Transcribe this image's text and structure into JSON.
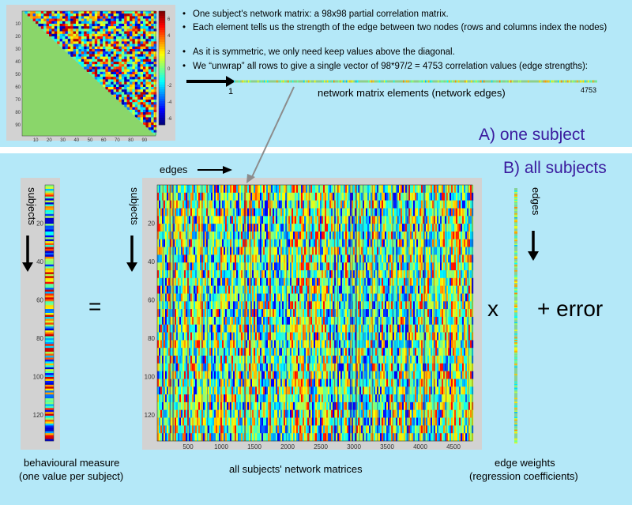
{
  "top": {
    "bullets": [
      "One subject's network matrix:  a 98x98 partial correlation matrix.",
      "Each element tells us the strength of the edge between two nodes (rows and columns index the nodes)",
      "As it is symmetric, we only need keep values above the diagonal.",
      "We “unwrap” all rows to give a single vector of 98*97/2 = 4753 correlation values (edge strengths):"
    ],
    "vector_start": "1",
    "vector_end": "4753",
    "vector_caption": "network matrix elements (network edges)",
    "title": "A) one subject"
  },
  "bottom": {
    "title": "B) all subjects",
    "edges_label": "edges",
    "subjects_label": "subjects",
    "subjects_label_2": "subjects",
    "edges_label_2": "edges",
    "equals": "=",
    "times": "x",
    "plus_error": "+  error",
    "behav_caption_1": "behavioural measure",
    "behav_caption_2": "(one value per subject)",
    "matrices_caption": "all subjects' network matrices",
    "weights_caption_1": "edge weights",
    "weights_caption_2": "(regression coefficients)"
  },
  "axes": {
    "small_y": [
      "10",
      "20",
      "30",
      "40",
      "50",
      "60",
      "70",
      "80",
      "90"
    ],
    "small_x": [
      "10",
      "20",
      "30",
      "40",
      "50",
      "60",
      "70",
      "80",
      "90"
    ],
    "colorbar": [
      "6",
      "4",
      "2",
      "0",
      "-2",
      "-4",
      "-6"
    ],
    "subject_y": [
      "20",
      "40",
      "60",
      "80",
      "100",
      "120"
    ],
    "edge_x": [
      "500",
      "1000",
      "1500",
      "2000",
      "2500",
      "3000",
      "3500",
      "4000",
      "4500"
    ]
  },
  "colors": {
    "panel": "#b4e8f8",
    "heading": "#3a1a9e",
    "matrix_base": "#7ed4a8",
    "lower_triangle": "#8ad66a",
    "frame": "#cfcfcf"
  }
}
